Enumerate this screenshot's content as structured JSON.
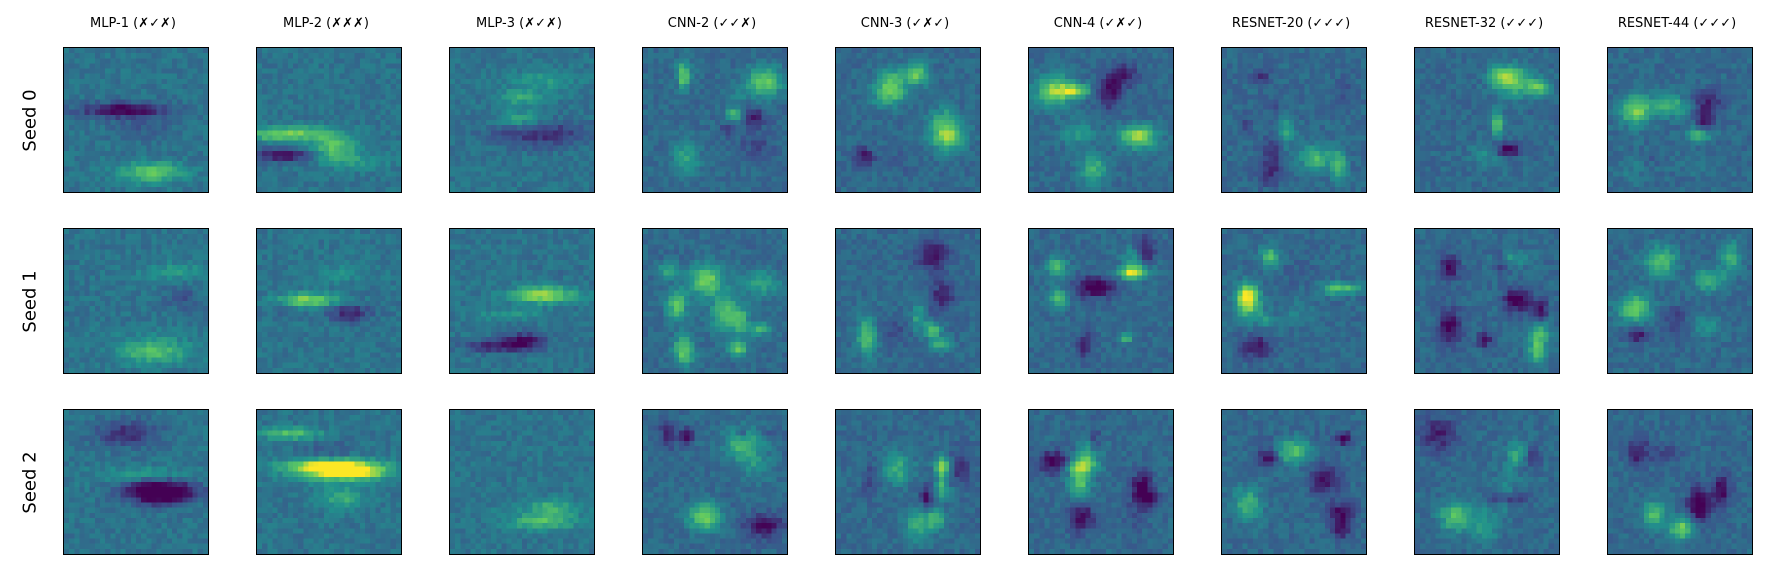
{
  "columns": [
    {
      "title": "MLP-1 (✗✓✗)"
    },
    {
      "title": "MLP-2 (✗✗✗)"
    },
    {
      "title": "MLP-3 (✗✓✗)"
    },
    {
      "title": "CNN-2 (✓✓✗)"
    },
    {
      "title": "CNN-3 (✓✗✓)"
    },
    {
      "title": "CNN-4 (✓✗✓)"
    },
    {
      "title": "RESNET-20 (✓✓✓)"
    },
    {
      "title": "RESNET-32 (✓✓✓)"
    },
    {
      "title": "RESNET-44 (✓✓✓)"
    }
  ],
  "rows": [
    {
      "label": "Seed 0"
    },
    {
      "label": "Seed 1"
    },
    {
      "label": "Seed 2"
    }
  ],
  "colormap": "viridis",
  "colors": {
    "background": "#ffffff",
    "frame": "#000000",
    "viridis_low": "#440154",
    "viridis_mid": "#21918c",
    "viridis_high": "#fde725"
  }
}
